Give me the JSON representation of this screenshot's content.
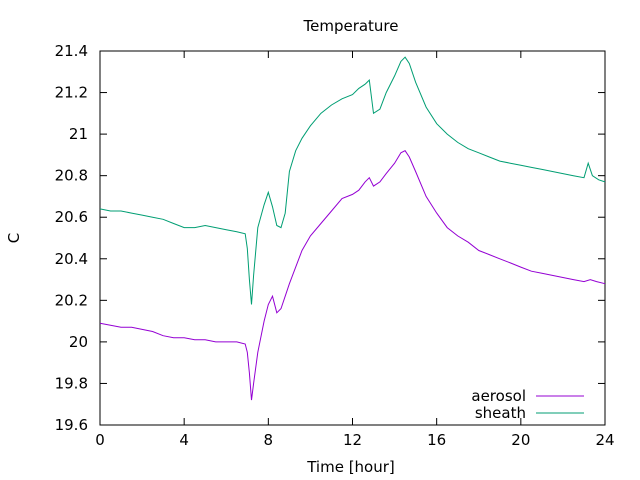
{
  "chart_data": {
    "type": "line",
    "title": "Temperature",
    "xlabel": "Time [hour]",
    "ylabel": "C",
    "xlim": [
      0,
      24
    ],
    "ylim": [
      19.6,
      21.4
    ],
    "xticks": [
      0,
      4,
      8,
      12,
      16,
      20,
      24
    ],
    "xtick_labels": [
      "0",
      "4",
      "8",
      "12",
      "16",
      "20",
      "24"
    ],
    "yticks": [
      19.6,
      19.8,
      20,
      20.2,
      20.4,
      20.6,
      20.8,
      21,
      21.2,
      21.4
    ],
    "ytick_labels": [
      "19.6",
      "19.8",
      "20",
      "20.2",
      "20.4",
      "20.6",
      "20.8",
      "21",
      "21.2",
      "21.4"
    ],
    "grid": false,
    "legend_position": "bottom-right",
    "series": [
      {
        "name": "aerosol",
        "color": "#9400d3",
        "x": [
          0,
          0.5,
          1,
          1.5,
          2,
          2.5,
          3,
          3.5,
          4,
          4.5,
          5,
          5.5,
          6,
          6.5,
          6.9,
          7.0,
          7.1,
          7.2,
          7.3,
          7.5,
          7.8,
          8.0,
          8.2,
          8.4,
          8.6,
          8.8,
          9.0,
          9.3,
          9.6,
          10.0,
          10.5,
          11,
          11.5,
          12,
          12.3,
          12.6,
          12.8,
          13.0,
          13.3,
          13.6,
          14.0,
          14.3,
          14.5,
          14.7,
          15.0,
          15.5,
          16,
          16.5,
          17,
          17.5,
          18,
          18.5,
          19,
          19.5,
          20,
          20.5,
          21,
          21.5,
          22,
          22.5,
          23,
          23.3,
          23.6,
          24
        ],
        "values": [
          20.09,
          20.08,
          20.07,
          20.07,
          20.06,
          20.05,
          20.03,
          20.02,
          20.02,
          20.01,
          20.01,
          20.0,
          20.0,
          20.0,
          19.99,
          19.95,
          19.85,
          19.72,
          19.8,
          19.95,
          20.1,
          20.18,
          20.22,
          20.14,
          20.16,
          20.22,
          20.28,
          20.36,
          20.44,
          20.51,
          20.57,
          20.63,
          20.69,
          20.71,
          20.73,
          20.77,
          20.79,
          20.75,
          20.77,
          20.81,
          20.86,
          20.91,
          20.92,
          20.89,
          20.82,
          20.7,
          20.62,
          20.55,
          20.51,
          20.48,
          20.44,
          20.42,
          20.4,
          20.38,
          20.36,
          20.34,
          20.33,
          20.32,
          20.31,
          20.3,
          20.29,
          20.3,
          20.29,
          20.28
        ]
      },
      {
        "name": "sheath",
        "color": "#009e73",
        "x": [
          0,
          0.5,
          1,
          1.5,
          2,
          2.5,
          3,
          3.5,
          4,
          4.5,
          5,
          5.5,
          6,
          6.5,
          6.9,
          7.0,
          7.1,
          7.2,
          7.3,
          7.5,
          7.8,
          8.0,
          8.2,
          8.4,
          8.6,
          8.8,
          9.0,
          9.3,
          9.6,
          10.0,
          10.5,
          11,
          11.5,
          12,
          12.3,
          12.6,
          12.8,
          13.0,
          13.3,
          13.6,
          14.0,
          14.3,
          14.5,
          14.7,
          15.0,
          15.5,
          16,
          16.5,
          17,
          17.5,
          18,
          18.5,
          19,
          19.5,
          20,
          20.5,
          21,
          21.5,
          22,
          22.5,
          23,
          23.2,
          23.4,
          23.7,
          24
        ],
        "values": [
          20.64,
          20.63,
          20.63,
          20.62,
          20.61,
          20.6,
          20.59,
          20.57,
          20.55,
          20.55,
          20.56,
          20.55,
          20.54,
          20.53,
          20.52,
          20.45,
          20.3,
          20.18,
          20.32,
          20.55,
          20.66,
          20.72,
          20.65,
          20.56,
          20.55,
          20.62,
          20.82,
          20.92,
          20.98,
          21.04,
          21.1,
          21.14,
          21.17,
          21.19,
          21.22,
          21.24,
          21.26,
          21.1,
          21.12,
          21.2,
          21.28,
          21.35,
          21.37,
          21.34,
          21.25,
          21.13,
          21.05,
          21.0,
          20.96,
          20.93,
          20.91,
          20.89,
          20.87,
          20.86,
          20.85,
          20.84,
          20.83,
          20.82,
          20.81,
          20.8,
          20.79,
          20.86,
          20.8,
          20.78,
          20.77
        ]
      }
    ]
  }
}
